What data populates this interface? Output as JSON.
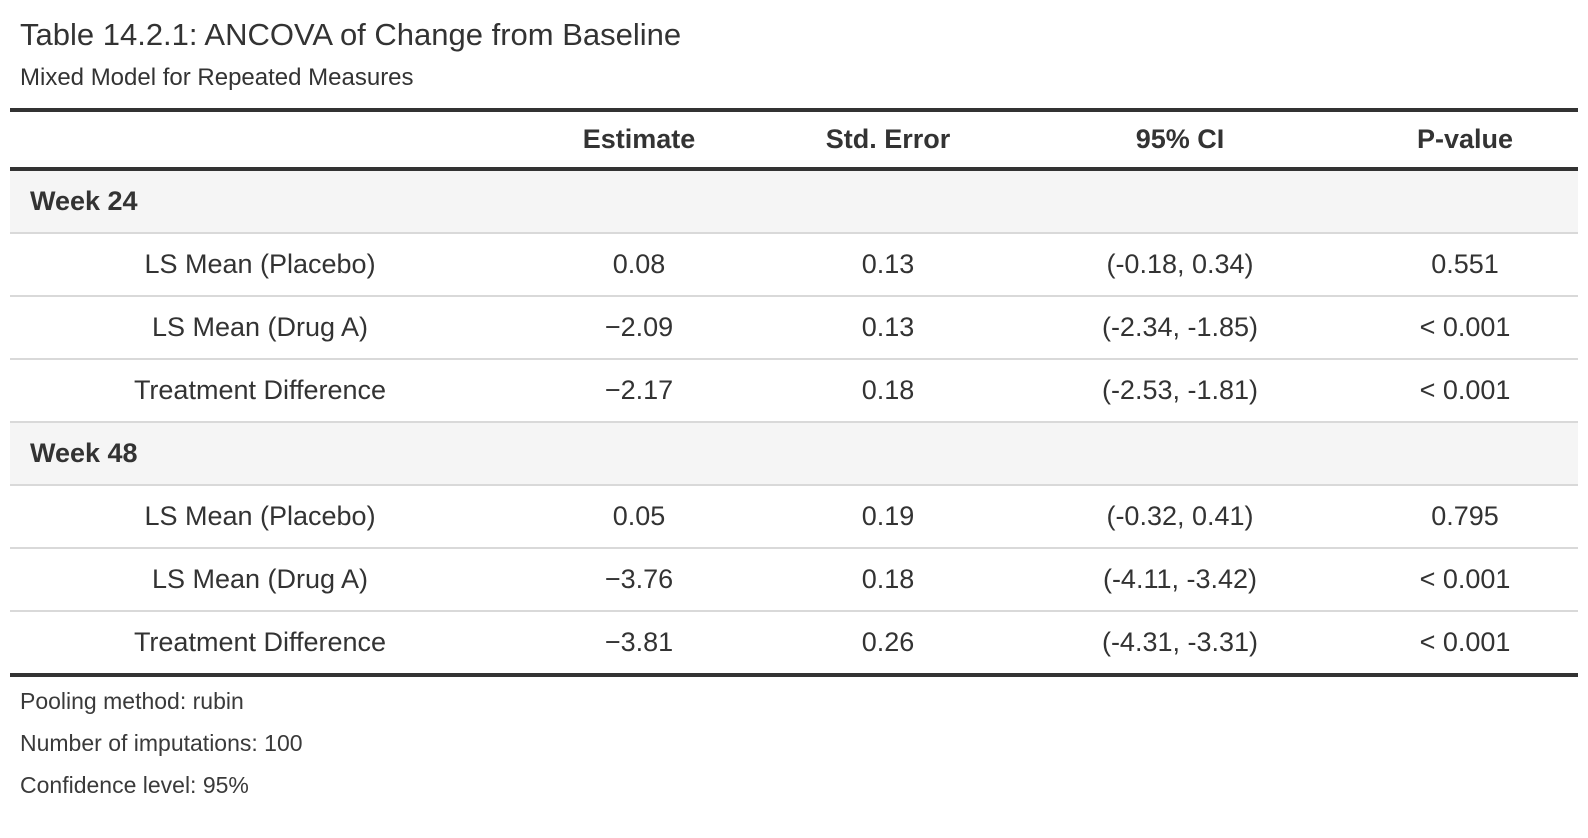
{
  "page": {
    "title": "Table 14.2.1: ANCOVA of Change from Baseline",
    "subtitle": "Mixed Model for Repeated Measures"
  },
  "table": {
    "columns": {
      "stub": "",
      "estimate": "Estimate",
      "std_error": "Std. Error",
      "ci": "95% CI",
      "p_value": "P-value"
    },
    "groups": [
      {
        "label": "Week 24",
        "rows": [
          {
            "label": "LS Mean (Placebo)",
            "estimate": "0.08",
            "std_error": "0.13",
            "ci": "(-0.18, 0.34)",
            "p_value": "0.551"
          },
          {
            "label": "LS Mean (Drug A)",
            "estimate": "−2.09",
            "std_error": "0.13",
            "ci": "(-2.34, -1.85)",
            "p_value": "< 0.001"
          },
          {
            "label": "Treatment Difference",
            "estimate": "−2.17",
            "std_error": "0.18",
            "ci": "(-2.53, -1.81)",
            "p_value": "< 0.001"
          }
        ]
      },
      {
        "label": "Week 48",
        "rows": [
          {
            "label": "LS Mean (Placebo)",
            "estimate": "0.05",
            "std_error": "0.19",
            "ci": "(-0.32, 0.41)",
            "p_value": "0.795"
          },
          {
            "label": "LS Mean (Drug A)",
            "estimate": "−3.76",
            "std_error": "0.18",
            "ci": "(-4.11, -3.42)",
            "p_value": "< 0.001"
          },
          {
            "label": "Treatment Difference",
            "estimate": "−3.81",
            "std_error": "0.26",
            "ci": "(-4.31, -3.31)",
            "p_value": "< 0.001"
          }
        ]
      }
    ],
    "footnotes": [
      "Pooling method: rubin",
      "Number of imputations: 100",
      "Confidence level: 95%"
    ]
  },
  "colors": {
    "heavy_border": "#333333",
    "light_border": "#d9d9d9",
    "group_row_bg": "#f5f5f5",
    "text": "#333333",
    "background": "#ffffff"
  }
}
